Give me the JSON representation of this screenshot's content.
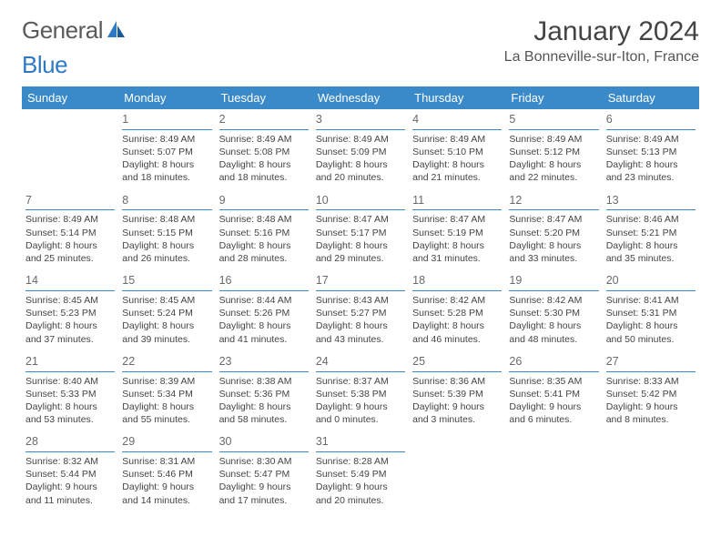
{
  "logo": {
    "part1": "General",
    "part2": "Blue"
  },
  "title": "January 2024",
  "location": "La Bonneville-sur-Iton, France",
  "colors": {
    "header_bg": "#3a8ac9",
    "header_text": "#ffffff",
    "daynum_border": "#3a8ac9",
    "body_text": "#444444",
    "page_bg": "#ffffff"
  },
  "weekdays": [
    "Sunday",
    "Monday",
    "Tuesday",
    "Wednesday",
    "Thursday",
    "Friday",
    "Saturday"
  ],
  "weeks": [
    [
      {
        "n": "",
        "lines": []
      },
      {
        "n": "1",
        "lines": [
          "Sunrise: 8:49 AM",
          "Sunset: 5:07 PM",
          "Daylight: 8 hours",
          "and 18 minutes."
        ]
      },
      {
        "n": "2",
        "lines": [
          "Sunrise: 8:49 AM",
          "Sunset: 5:08 PM",
          "Daylight: 8 hours",
          "and 18 minutes."
        ]
      },
      {
        "n": "3",
        "lines": [
          "Sunrise: 8:49 AM",
          "Sunset: 5:09 PM",
          "Daylight: 8 hours",
          "and 20 minutes."
        ]
      },
      {
        "n": "4",
        "lines": [
          "Sunrise: 8:49 AM",
          "Sunset: 5:10 PM",
          "Daylight: 8 hours",
          "and 21 minutes."
        ]
      },
      {
        "n": "5",
        "lines": [
          "Sunrise: 8:49 AM",
          "Sunset: 5:12 PM",
          "Daylight: 8 hours",
          "and 22 minutes."
        ]
      },
      {
        "n": "6",
        "lines": [
          "Sunrise: 8:49 AM",
          "Sunset: 5:13 PM",
          "Daylight: 8 hours",
          "and 23 minutes."
        ]
      }
    ],
    [
      {
        "n": "7",
        "lines": [
          "Sunrise: 8:49 AM",
          "Sunset: 5:14 PM",
          "Daylight: 8 hours",
          "and 25 minutes."
        ]
      },
      {
        "n": "8",
        "lines": [
          "Sunrise: 8:48 AM",
          "Sunset: 5:15 PM",
          "Daylight: 8 hours",
          "and 26 minutes."
        ]
      },
      {
        "n": "9",
        "lines": [
          "Sunrise: 8:48 AM",
          "Sunset: 5:16 PM",
          "Daylight: 8 hours",
          "and 28 minutes."
        ]
      },
      {
        "n": "10",
        "lines": [
          "Sunrise: 8:47 AM",
          "Sunset: 5:17 PM",
          "Daylight: 8 hours",
          "and 29 minutes."
        ]
      },
      {
        "n": "11",
        "lines": [
          "Sunrise: 8:47 AM",
          "Sunset: 5:19 PM",
          "Daylight: 8 hours",
          "and 31 minutes."
        ]
      },
      {
        "n": "12",
        "lines": [
          "Sunrise: 8:47 AM",
          "Sunset: 5:20 PM",
          "Daylight: 8 hours",
          "and 33 minutes."
        ]
      },
      {
        "n": "13",
        "lines": [
          "Sunrise: 8:46 AM",
          "Sunset: 5:21 PM",
          "Daylight: 8 hours",
          "and 35 minutes."
        ]
      }
    ],
    [
      {
        "n": "14",
        "lines": [
          "Sunrise: 8:45 AM",
          "Sunset: 5:23 PM",
          "Daylight: 8 hours",
          "and 37 minutes."
        ]
      },
      {
        "n": "15",
        "lines": [
          "Sunrise: 8:45 AM",
          "Sunset: 5:24 PM",
          "Daylight: 8 hours",
          "and 39 minutes."
        ]
      },
      {
        "n": "16",
        "lines": [
          "Sunrise: 8:44 AM",
          "Sunset: 5:26 PM",
          "Daylight: 8 hours",
          "and 41 minutes."
        ]
      },
      {
        "n": "17",
        "lines": [
          "Sunrise: 8:43 AM",
          "Sunset: 5:27 PM",
          "Daylight: 8 hours",
          "and 43 minutes."
        ]
      },
      {
        "n": "18",
        "lines": [
          "Sunrise: 8:42 AM",
          "Sunset: 5:28 PM",
          "Daylight: 8 hours",
          "and 46 minutes."
        ]
      },
      {
        "n": "19",
        "lines": [
          "Sunrise: 8:42 AM",
          "Sunset: 5:30 PM",
          "Daylight: 8 hours",
          "and 48 minutes."
        ]
      },
      {
        "n": "20",
        "lines": [
          "Sunrise: 8:41 AM",
          "Sunset: 5:31 PM",
          "Daylight: 8 hours",
          "and 50 minutes."
        ]
      }
    ],
    [
      {
        "n": "21",
        "lines": [
          "Sunrise: 8:40 AM",
          "Sunset: 5:33 PM",
          "Daylight: 8 hours",
          "and 53 minutes."
        ]
      },
      {
        "n": "22",
        "lines": [
          "Sunrise: 8:39 AM",
          "Sunset: 5:34 PM",
          "Daylight: 8 hours",
          "and 55 minutes."
        ]
      },
      {
        "n": "23",
        "lines": [
          "Sunrise: 8:38 AM",
          "Sunset: 5:36 PM",
          "Daylight: 8 hours",
          "and 58 minutes."
        ]
      },
      {
        "n": "24",
        "lines": [
          "Sunrise: 8:37 AM",
          "Sunset: 5:38 PM",
          "Daylight: 9 hours",
          "and 0 minutes."
        ]
      },
      {
        "n": "25",
        "lines": [
          "Sunrise: 8:36 AM",
          "Sunset: 5:39 PM",
          "Daylight: 9 hours",
          "and 3 minutes."
        ]
      },
      {
        "n": "26",
        "lines": [
          "Sunrise: 8:35 AM",
          "Sunset: 5:41 PM",
          "Daylight: 9 hours",
          "and 6 minutes."
        ]
      },
      {
        "n": "27",
        "lines": [
          "Sunrise: 8:33 AM",
          "Sunset: 5:42 PM",
          "Daylight: 9 hours",
          "and 8 minutes."
        ]
      }
    ],
    [
      {
        "n": "28",
        "lines": [
          "Sunrise: 8:32 AM",
          "Sunset: 5:44 PM",
          "Daylight: 9 hours",
          "and 11 minutes."
        ]
      },
      {
        "n": "29",
        "lines": [
          "Sunrise: 8:31 AM",
          "Sunset: 5:46 PM",
          "Daylight: 9 hours",
          "and 14 minutes."
        ]
      },
      {
        "n": "30",
        "lines": [
          "Sunrise: 8:30 AM",
          "Sunset: 5:47 PM",
          "Daylight: 9 hours",
          "and 17 minutes."
        ]
      },
      {
        "n": "31",
        "lines": [
          "Sunrise: 8:28 AM",
          "Sunset: 5:49 PM",
          "Daylight: 9 hours",
          "and 20 minutes."
        ]
      },
      {
        "n": "",
        "lines": []
      },
      {
        "n": "",
        "lines": []
      },
      {
        "n": "",
        "lines": []
      }
    ]
  ]
}
